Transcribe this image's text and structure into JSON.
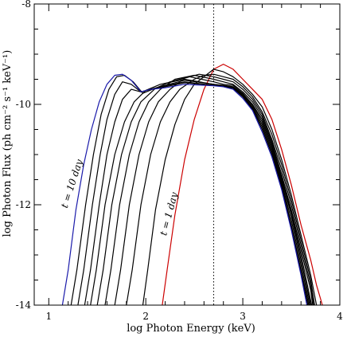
{
  "chart_data": {
    "type": "line",
    "title": "",
    "xlabel": "log Photon Energy (keV)",
    "ylabel": "log Photon Flux (ph cm⁻² s⁻¹ keV⁻¹)",
    "xlim": [
      0.85,
      4.0
    ],
    "ylim": [
      -14,
      -8
    ],
    "xticks": [
      1,
      2,
      3,
      4
    ],
    "yticks": [
      -8,
      -10,
      -12,
      -14
    ],
    "grid": false,
    "legend": "none",
    "reference_line": {
      "x": 2.7,
      "style": "dotted"
    },
    "annotations": [
      {
        "text": "t = 10 day",
        "x": 1.27,
        "y": -11.6,
        "angle": -72
      },
      {
        "text": "t = 1 day",
        "x": 2.27,
        "y": -12.2,
        "angle": -75
      }
    ],
    "series": [
      {
        "color": "#cc0000",
        "points": [
          [
            2.17,
            -14
          ],
          [
            2.22,
            -13.3
          ],
          [
            2.3,
            -12.2
          ],
          [
            2.4,
            -11.1
          ],
          [
            2.5,
            -10.3
          ],
          [
            2.6,
            -9.7
          ],
          [
            2.7,
            -9.3
          ],
          [
            2.8,
            -9.2
          ],
          [
            2.9,
            -9.3
          ],
          [
            3.0,
            -9.5
          ],
          [
            3.1,
            -9.7
          ],
          [
            3.2,
            -9.9
          ],
          [
            3.3,
            -10.3
          ],
          [
            3.4,
            -10.9
          ],
          [
            3.5,
            -11.6
          ],
          [
            3.6,
            -12.4
          ],
          [
            3.7,
            -13.1
          ],
          [
            3.76,
            -13.6
          ],
          [
            3.82,
            -14
          ]
        ]
      },
      {
        "color": "#000000",
        "points": [
          [
            1.97,
            -14
          ],
          [
            2.02,
            -13.3
          ],
          [
            2.1,
            -12.1
          ],
          [
            2.2,
            -11.1
          ],
          [
            2.3,
            -10.4
          ],
          [
            2.4,
            -9.9
          ],
          [
            2.5,
            -9.6
          ],
          [
            2.6,
            -9.45
          ],
          [
            2.7,
            -9.3
          ],
          [
            2.8,
            -9.35
          ],
          [
            2.9,
            -9.45
          ],
          [
            3.0,
            -9.6
          ],
          [
            3.1,
            -9.8
          ],
          [
            3.2,
            -10.05
          ],
          [
            3.3,
            -10.5
          ],
          [
            3.4,
            -11.1
          ],
          [
            3.5,
            -11.8
          ],
          [
            3.6,
            -12.6
          ],
          [
            3.7,
            -13.4
          ],
          [
            3.76,
            -14
          ]
        ]
      },
      {
        "color": "#000000",
        "points": [
          [
            1.8,
            -14
          ],
          [
            1.86,
            -13.3
          ],
          [
            1.95,
            -12.0
          ],
          [
            2.05,
            -11.0
          ],
          [
            2.15,
            -10.35
          ],
          [
            2.25,
            -9.95
          ],
          [
            2.35,
            -9.7
          ],
          [
            2.5,
            -9.5
          ],
          [
            2.6,
            -9.42
          ],
          [
            2.7,
            -9.4
          ],
          [
            2.8,
            -9.45
          ],
          [
            2.9,
            -9.5
          ],
          [
            3.0,
            -9.65
          ],
          [
            3.1,
            -9.85
          ],
          [
            3.2,
            -10.15
          ],
          [
            3.3,
            -10.6
          ],
          [
            3.4,
            -11.2
          ],
          [
            3.5,
            -11.9
          ],
          [
            3.6,
            -12.7
          ],
          [
            3.7,
            -13.5
          ],
          [
            3.74,
            -14
          ]
        ]
      },
      {
        "color": "#000000",
        "points": [
          [
            1.68,
            -14
          ],
          [
            1.74,
            -13.3
          ],
          [
            1.83,
            -12.0
          ],
          [
            1.93,
            -11.0
          ],
          [
            2.03,
            -10.35
          ],
          [
            2.13,
            -9.95
          ],
          [
            2.25,
            -9.7
          ],
          [
            2.4,
            -9.48
          ],
          [
            2.55,
            -9.4
          ],
          [
            2.7,
            -9.45
          ],
          [
            2.8,
            -9.5
          ],
          [
            2.9,
            -9.55
          ],
          [
            3.0,
            -9.7
          ],
          [
            3.1,
            -9.9
          ],
          [
            3.2,
            -10.2
          ],
          [
            3.3,
            -10.7
          ],
          [
            3.4,
            -11.3
          ],
          [
            3.5,
            -12.0
          ],
          [
            3.6,
            -12.8
          ],
          [
            3.7,
            -13.6
          ],
          [
            3.73,
            -14
          ]
        ]
      },
      {
        "color": "#000000",
        "points": [
          [
            1.58,
            -14
          ],
          [
            1.64,
            -13.3
          ],
          [
            1.73,
            -12.0
          ],
          [
            1.83,
            -11.0
          ],
          [
            1.93,
            -10.35
          ],
          [
            2.03,
            -9.95
          ],
          [
            2.15,
            -9.7
          ],
          [
            2.3,
            -9.5
          ],
          [
            2.5,
            -9.42
          ],
          [
            2.7,
            -9.5
          ],
          [
            2.8,
            -9.55
          ],
          [
            2.9,
            -9.6
          ],
          [
            3.0,
            -9.75
          ],
          [
            3.1,
            -9.95
          ],
          [
            3.2,
            -10.25
          ],
          [
            3.3,
            -10.75
          ],
          [
            3.4,
            -11.4
          ],
          [
            3.5,
            -12.1
          ],
          [
            3.6,
            -12.9
          ],
          [
            3.7,
            -13.7
          ],
          [
            3.72,
            -14
          ]
        ]
      },
      {
        "color": "#000000",
        "points": [
          [
            1.5,
            -14
          ],
          [
            1.56,
            -13.3
          ],
          [
            1.65,
            -12.0
          ],
          [
            1.75,
            -11.0
          ],
          [
            1.85,
            -10.35
          ],
          [
            1.95,
            -9.95
          ],
          [
            2.1,
            -9.68
          ],
          [
            2.25,
            -9.55
          ],
          [
            2.45,
            -9.45
          ],
          [
            2.7,
            -9.55
          ],
          [
            2.8,
            -9.6
          ],
          [
            2.9,
            -9.62
          ],
          [
            3.0,
            -9.78
          ],
          [
            3.1,
            -10.0
          ],
          [
            3.2,
            -10.3
          ],
          [
            3.3,
            -10.8
          ],
          [
            3.4,
            -11.45
          ],
          [
            3.5,
            -12.15
          ],
          [
            3.6,
            -13.0
          ],
          [
            3.71,
            -14
          ]
        ]
      },
      {
        "color": "#000000",
        "points": [
          [
            1.43,
            -14
          ],
          [
            1.49,
            -13.3
          ],
          [
            1.58,
            -12.0
          ],
          [
            1.68,
            -11.0
          ],
          [
            1.78,
            -10.35
          ],
          [
            1.88,
            -9.95
          ],
          [
            2.0,
            -9.72
          ],
          [
            2.15,
            -9.6
          ],
          [
            2.4,
            -9.5
          ],
          [
            2.7,
            -9.6
          ],
          [
            2.8,
            -9.62
          ],
          [
            2.9,
            -9.65
          ],
          [
            3.0,
            -9.8
          ],
          [
            3.1,
            -10.02
          ],
          [
            3.2,
            -10.35
          ],
          [
            3.3,
            -10.85
          ],
          [
            3.4,
            -11.5
          ],
          [
            3.5,
            -12.2
          ],
          [
            3.6,
            -13.1
          ],
          [
            3.7,
            -14
          ]
        ]
      },
      {
        "color": "#000000",
        "points": [
          [
            1.37,
            -14
          ],
          [
            1.43,
            -13.3
          ],
          [
            1.52,
            -12.0
          ],
          [
            1.6,
            -11.0
          ],
          [
            1.68,
            -10.35
          ],
          [
            1.76,
            -9.9
          ],
          [
            1.85,
            -9.7
          ],
          [
            1.95,
            -9.75
          ],
          [
            2.05,
            -9.7
          ],
          [
            2.2,
            -9.62
          ],
          [
            2.4,
            -9.52
          ],
          [
            2.7,
            -9.6
          ],
          [
            2.8,
            -9.63
          ],
          [
            2.9,
            -9.66
          ],
          [
            3.0,
            -9.82
          ],
          [
            3.1,
            -10.05
          ],
          [
            3.2,
            -10.4
          ],
          [
            3.3,
            -10.9
          ],
          [
            3.4,
            -11.55
          ],
          [
            3.5,
            -12.3
          ],
          [
            3.6,
            -13.2
          ],
          [
            3.69,
            -14
          ]
        ]
      },
      {
        "color": "#000000",
        "points": [
          [
            1.3,
            -14
          ],
          [
            1.36,
            -13.3
          ],
          [
            1.45,
            -12.0
          ],
          [
            1.53,
            -11.0
          ],
          [
            1.6,
            -10.3
          ],
          [
            1.68,
            -9.8
          ],
          [
            1.76,
            -9.55
          ],
          [
            1.85,
            -9.6
          ],
          [
            1.95,
            -9.75
          ],
          [
            2.05,
            -9.7
          ],
          [
            2.2,
            -9.63
          ],
          [
            2.4,
            -9.55
          ],
          [
            2.7,
            -9.62
          ],
          [
            2.8,
            -9.63
          ],
          [
            2.9,
            -9.67
          ],
          [
            3.0,
            -9.84
          ],
          [
            3.1,
            -10.08
          ],
          [
            3.2,
            -10.45
          ],
          [
            3.3,
            -10.95
          ],
          [
            3.4,
            -11.6
          ],
          [
            3.5,
            -12.4
          ],
          [
            3.6,
            -13.3
          ],
          [
            3.68,
            -14
          ]
        ]
      },
      {
        "color": "#000000",
        "points": [
          [
            1.23,
            -14
          ],
          [
            1.29,
            -13.3
          ],
          [
            1.38,
            -12.0
          ],
          [
            1.46,
            -11.0
          ],
          [
            1.54,
            -10.2
          ],
          [
            1.62,
            -9.7
          ],
          [
            1.7,
            -9.45
          ],
          [
            1.78,
            -9.42
          ],
          [
            1.87,
            -9.55
          ],
          [
            1.97,
            -9.78
          ],
          [
            2.07,
            -9.7
          ],
          [
            2.2,
            -9.65
          ],
          [
            2.4,
            -9.57
          ],
          [
            2.7,
            -9.62
          ],
          [
            2.8,
            -9.64
          ],
          [
            2.9,
            -9.68
          ],
          [
            3.0,
            -9.85
          ],
          [
            3.1,
            -10.1
          ],
          [
            3.2,
            -10.5
          ],
          [
            3.3,
            -11.0
          ],
          [
            3.4,
            -11.65
          ],
          [
            3.5,
            -12.45
          ],
          [
            3.6,
            -13.35
          ],
          [
            3.67,
            -14
          ]
        ]
      },
      {
        "color": "#1a1aaa",
        "points": [
          [
            1.14,
            -14
          ],
          [
            1.2,
            -13.3
          ],
          [
            1.28,
            -12.1
          ],
          [
            1.36,
            -11.2
          ],
          [
            1.44,
            -10.5
          ],
          [
            1.52,
            -9.95
          ],
          [
            1.6,
            -9.6
          ],
          [
            1.68,
            -9.42
          ],
          [
            1.76,
            -9.4
          ],
          [
            1.85,
            -9.52
          ],
          [
            1.95,
            -9.75
          ],
          [
            2.05,
            -9.7
          ],
          [
            2.2,
            -9.67
          ],
          [
            2.4,
            -9.6
          ],
          [
            2.7,
            -9.63
          ],
          [
            2.8,
            -9.65
          ],
          [
            2.9,
            -9.7
          ],
          [
            3.0,
            -9.88
          ],
          [
            3.1,
            -10.12
          ],
          [
            3.2,
            -10.55
          ],
          [
            3.3,
            -11.05
          ],
          [
            3.4,
            -11.7
          ],
          [
            3.5,
            -12.5
          ],
          [
            3.6,
            -13.4
          ],
          [
            3.66,
            -14
          ]
        ]
      }
    ]
  }
}
